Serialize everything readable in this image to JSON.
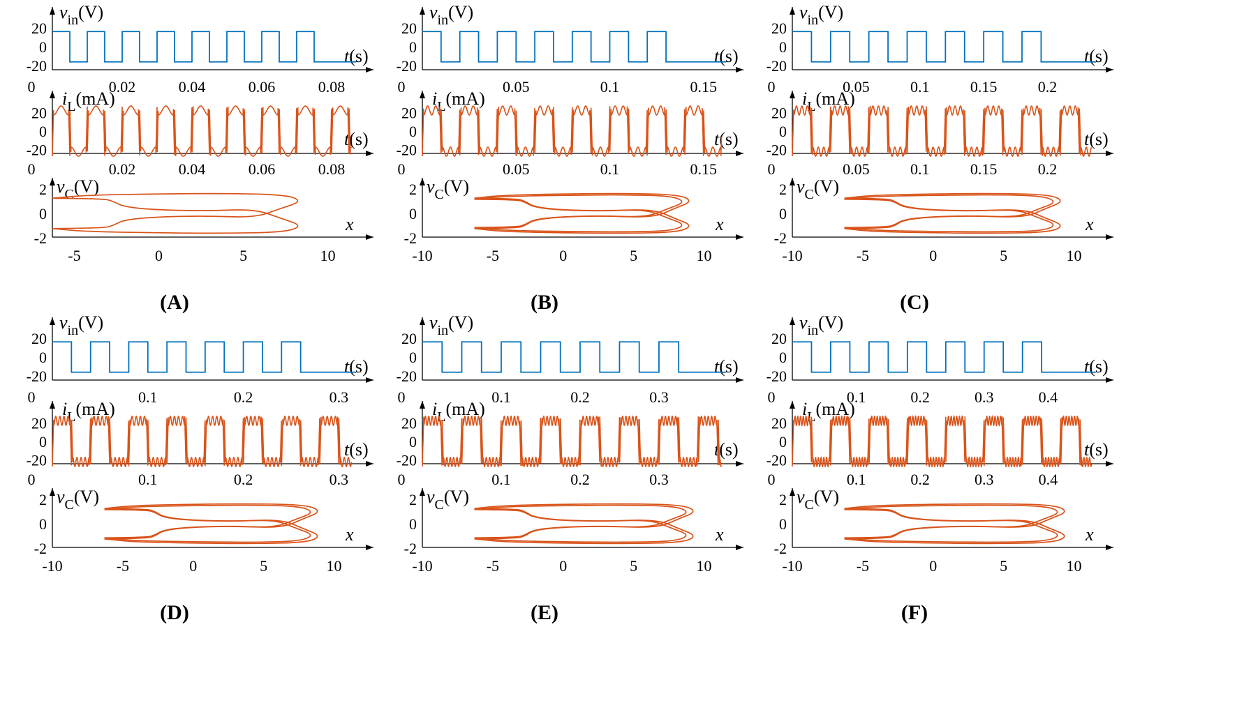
{
  "chart_data": [
    {
      "panel": "(A)",
      "periods": 8,
      "vin": {
        "type": "line",
        "ylabel_var": "v",
        "ylabel_sub": "in",
        "ylabel_unit": "(V)",
        "xlabel_var": "t",
        "xlabel_unit": "(s)",
        "yticks": [
          "20",
          "0",
          "-20"
        ],
        "xticks": [
          "0",
          "0.02",
          "0.04",
          "0.06",
          "0.08"
        ],
        "xmax": 0.08,
        "xlim": [
          0,
          0.087
        ],
        "ylim": [
          -25,
          25
        ],
        "amplitude": 16
      },
      "iL": {
        "type": "line",
        "ylabel_var": "i",
        "ylabel_sub": "L",
        "ylabel_unit": "(mA)",
        "xlabel_var": "t",
        "xlabel_unit": "(s)",
        "yticks": [
          "20",
          "0",
          "-20"
        ],
        "xticks": [
          "0",
          "0.02",
          "0.04",
          "0.06",
          "0.08"
        ],
        "xmax": 0.08,
        "xlim": [
          0,
          0.087
        ],
        "ylim": [
          -30,
          30
        ],
        "ripples": 1
      },
      "vC": {
        "type": "line",
        "ylabel_var": "v",
        "ylabel_sub": "C",
        "ylabel_unit": "(V)",
        "xlabel_var": "x",
        "yticks": [
          "2",
          "0",
          "-2"
        ],
        "xticks": [
          "-5",
          "0",
          "5",
          "10"
        ],
        "xtick_values": [
          -5,
          0,
          5,
          10
        ],
        "xlim": [
          -6.3,
          12.7
        ],
        "ylim": [
          -2.3,
          2.3
        ],
        "orbit_right": 8.7
      }
    },
    {
      "panel": "(B)",
      "periods": 7,
      "vin": {
        "type": "line",
        "ylabel_var": "v",
        "ylabel_sub": "in",
        "ylabel_unit": "(V)",
        "xlabel_var": "t",
        "xlabel_unit": "(s)",
        "yticks": [
          "20",
          "0",
          "-20"
        ],
        "xticks": [
          "0",
          "0.05",
          "0.1",
          "0.15"
        ],
        "xmax": 0.14,
        "xlim": [
          0,
          0.162
        ],
        "ylim": [
          -25,
          25
        ],
        "amplitude": 16
      },
      "iL": {
        "type": "line",
        "ylabel_var": "i",
        "ylabel_sub": "L",
        "ylabel_unit": "(mA)",
        "xlabel_var": "t",
        "xlabel_unit": "(s)",
        "yticks": [
          "20",
          "0",
          "-20"
        ],
        "xticks": [
          "0",
          "0.05",
          "0.1",
          "0.15"
        ],
        "xmax": 0.14,
        "xlim": [
          0,
          0.162
        ],
        "ylim": [
          -30,
          30
        ],
        "ripples": 2
      },
      "vC": {
        "type": "line",
        "ylabel_var": "v",
        "ylabel_sub": "C",
        "ylabel_unit": "(V)",
        "xlabel_var": "x",
        "yticks": [
          "2",
          "0",
          "-2"
        ],
        "xticks": [
          "-10",
          "-5",
          "0",
          "5",
          "10"
        ],
        "xtick_values": [
          -10,
          -5,
          0,
          5,
          10
        ],
        "xlim": [
          -10,
          12.8
        ],
        "ylim": [
          -2.3,
          2.3
        ],
        "orbit_right": 9.4
      }
    },
    {
      "panel": "(C)",
      "periods": 7,
      "vin": {
        "type": "line",
        "ylabel_var": "v",
        "ylabel_sub": "in",
        "ylabel_unit": "(V)",
        "xlabel_var": "t",
        "xlabel_unit": "(s)",
        "yticks": [
          "20",
          "0",
          "-20"
        ],
        "xticks": [
          "0",
          "0.05",
          "0.1",
          "0.15",
          "0.2"
        ],
        "xmax": 0.21,
        "xlim": [
          0,
          0.238
        ],
        "ylim": [
          -25,
          25
        ],
        "amplitude": 16
      },
      "iL": {
        "type": "line",
        "ylabel_var": "i",
        "ylabel_sub": "L",
        "ylabel_unit": "(mA)",
        "xlabel_var": "t",
        "xlabel_unit": "(s)",
        "yticks": [
          "20",
          "0",
          "-20"
        ],
        "xticks": [
          "0",
          "0.05",
          "0.1",
          "0.15",
          "0.2"
        ],
        "xmax": 0.21,
        "xlim": [
          0,
          0.238
        ],
        "ylim": [
          -30,
          30
        ],
        "ripples": 3
      },
      "vC": {
        "type": "line",
        "ylabel_var": "v",
        "ylabel_sub": "C",
        "ylabel_unit": "(V)",
        "xlabel_var": "x",
        "yticks": [
          "2",
          "0",
          "-2"
        ],
        "xticks": [
          "-10",
          "-5",
          "0",
          "5",
          "10"
        ],
        "xtick_values": [
          -10,
          -5,
          0,
          5,
          10
        ],
        "xlim": [
          -10,
          12.8
        ],
        "ylim": [
          -2.3,
          2.3
        ],
        "orbit_right": 9.5
      }
    },
    {
      "panel": "(D)",
      "periods": 7,
      "vin": {
        "type": "line",
        "ylabel_var": "v",
        "ylabel_sub": "in",
        "ylabel_unit": "(V)",
        "xlabel_var": "t",
        "xlabel_unit": "(s)",
        "yticks": [
          "20",
          "0",
          "-20"
        ],
        "xticks": [
          "0",
          "0.1",
          "0.2",
          "0.3"
        ],
        "xmax": 0.28,
        "xlim": [
          0,
          0.318
        ],
        "ylim": [
          -25,
          25
        ],
        "amplitude": 16
      },
      "iL": {
        "type": "line",
        "ylabel_var": "i",
        "ylabel_sub": "L",
        "ylabel_unit": "(mA)",
        "xlabel_var": "t",
        "xlabel_unit": "(s)",
        "yticks": [
          "20",
          "0",
          "-20"
        ],
        "xticks": [
          "0",
          "0.1",
          "0.2",
          "0.3"
        ],
        "xmax": 0.28,
        "xlim": [
          0,
          0.318
        ],
        "ylim": [
          -30,
          30
        ],
        "ripples": 4
      },
      "vC": {
        "type": "line",
        "ylabel_var": "v",
        "ylabel_sub": "C",
        "ylabel_unit": "(V)",
        "xlabel_var": "x",
        "yticks": [
          "2",
          "0",
          "-2"
        ],
        "xticks": [
          "-10",
          "-5",
          "0",
          "5",
          "10"
        ],
        "xtick_values": [
          -10,
          -5,
          0,
          5,
          10
        ],
        "xlim": [
          -10,
          12.8
        ],
        "ylim": [
          -2.3,
          2.3
        ],
        "orbit_right": 9.3
      }
    },
    {
      "panel": "(E)",
      "periods": 7,
      "vin": {
        "type": "line",
        "ylabel_var": "v",
        "ylabel_sub": "in",
        "ylabel_unit": "(V)",
        "xlabel_var": "t",
        "xlabel_unit": "(s)",
        "yticks": [
          "20",
          "0",
          "-20"
        ],
        "xticks": [
          "0",
          "0.1",
          "0.2",
          "0.3"
        ],
        "xmax": 0.35,
        "xlim": [
          0,
          0.385
        ],
        "ylim": [
          -25,
          25
        ],
        "amplitude": 16
      },
      "iL": {
        "type": "line",
        "ylabel_var": "i",
        "ylabel_sub": "L",
        "ylabel_unit": "(mA)",
        "xlabel_var": "t",
        "xlabel_unit": "(s)",
        "yticks": [
          "20",
          "0",
          "-20"
        ],
        "xticks": [
          "0",
          "0.1",
          "0.2",
          "0.3"
        ],
        "xmax": 0.35,
        "xlim": [
          0,
          0.385
        ],
        "ylim": [
          -30,
          30
        ],
        "ripples": 5
      },
      "vC": {
        "type": "line",
        "ylabel_var": "v",
        "ylabel_sub": "C",
        "ylabel_unit": "(V)",
        "xlabel_var": "x",
        "yticks": [
          "2",
          "0",
          "-2"
        ],
        "xticks": [
          "-10",
          "-5",
          "0",
          "5",
          "10"
        ],
        "xtick_values": [
          -10,
          -5,
          0,
          5,
          10
        ],
        "xlim": [
          -10,
          12.8
        ],
        "ylim": [
          -2.3,
          2.3
        ],
        "orbit_right": 9.7
      }
    },
    {
      "panel": "(F)",
      "periods": 7,
      "vin": {
        "type": "line",
        "ylabel_var": "v",
        "ylabel_sub": "in",
        "ylabel_unit": "(V)",
        "xlabel_var": "t",
        "xlabel_unit": "(s)",
        "yticks": [
          "20",
          "0",
          "-20"
        ],
        "xticks": [
          "0",
          "0.1",
          "0.2",
          "0.3",
          "0.4"
        ],
        "xmax": 0.42,
        "xlim": [
          0,
          0.475
        ],
        "ylim": [
          -25,
          25
        ],
        "amplitude": 16
      },
      "iL": {
        "type": "line",
        "ylabel_var": "i",
        "ylabel_sub": "L",
        "ylabel_unit": "(mA)",
        "xlabel_var": "t",
        "xlabel_unit": "(s)",
        "yticks": [
          "20",
          "0",
          "-20"
        ],
        "xticks": [
          "0",
          "0.1",
          "0.2",
          "0.3",
          "0.4"
        ],
        "xmax": 0.42,
        "xlim": [
          0,
          0.475
        ],
        "ylim": [
          -30,
          30
        ],
        "ripples": 6
      },
      "vC": {
        "type": "line",
        "ylabel_var": "v",
        "ylabel_sub": "C",
        "ylabel_unit": "(V)",
        "xlabel_var": "x",
        "yticks": [
          "2",
          "0",
          "-2"
        ],
        "xticks": [
          "-10",
          "-5",
          "0",
          "5",
          "10"
        ],
        "xtick_values": [
          -10,
          -5,
          0,
          5,
          10
        ],
        "xlim": [
          -10,
          12.8
        ],
        "ylim": [
          -2.3,
          2.3
        ],
        "orbit_right": 9.8
      }
    }
  ]
}
